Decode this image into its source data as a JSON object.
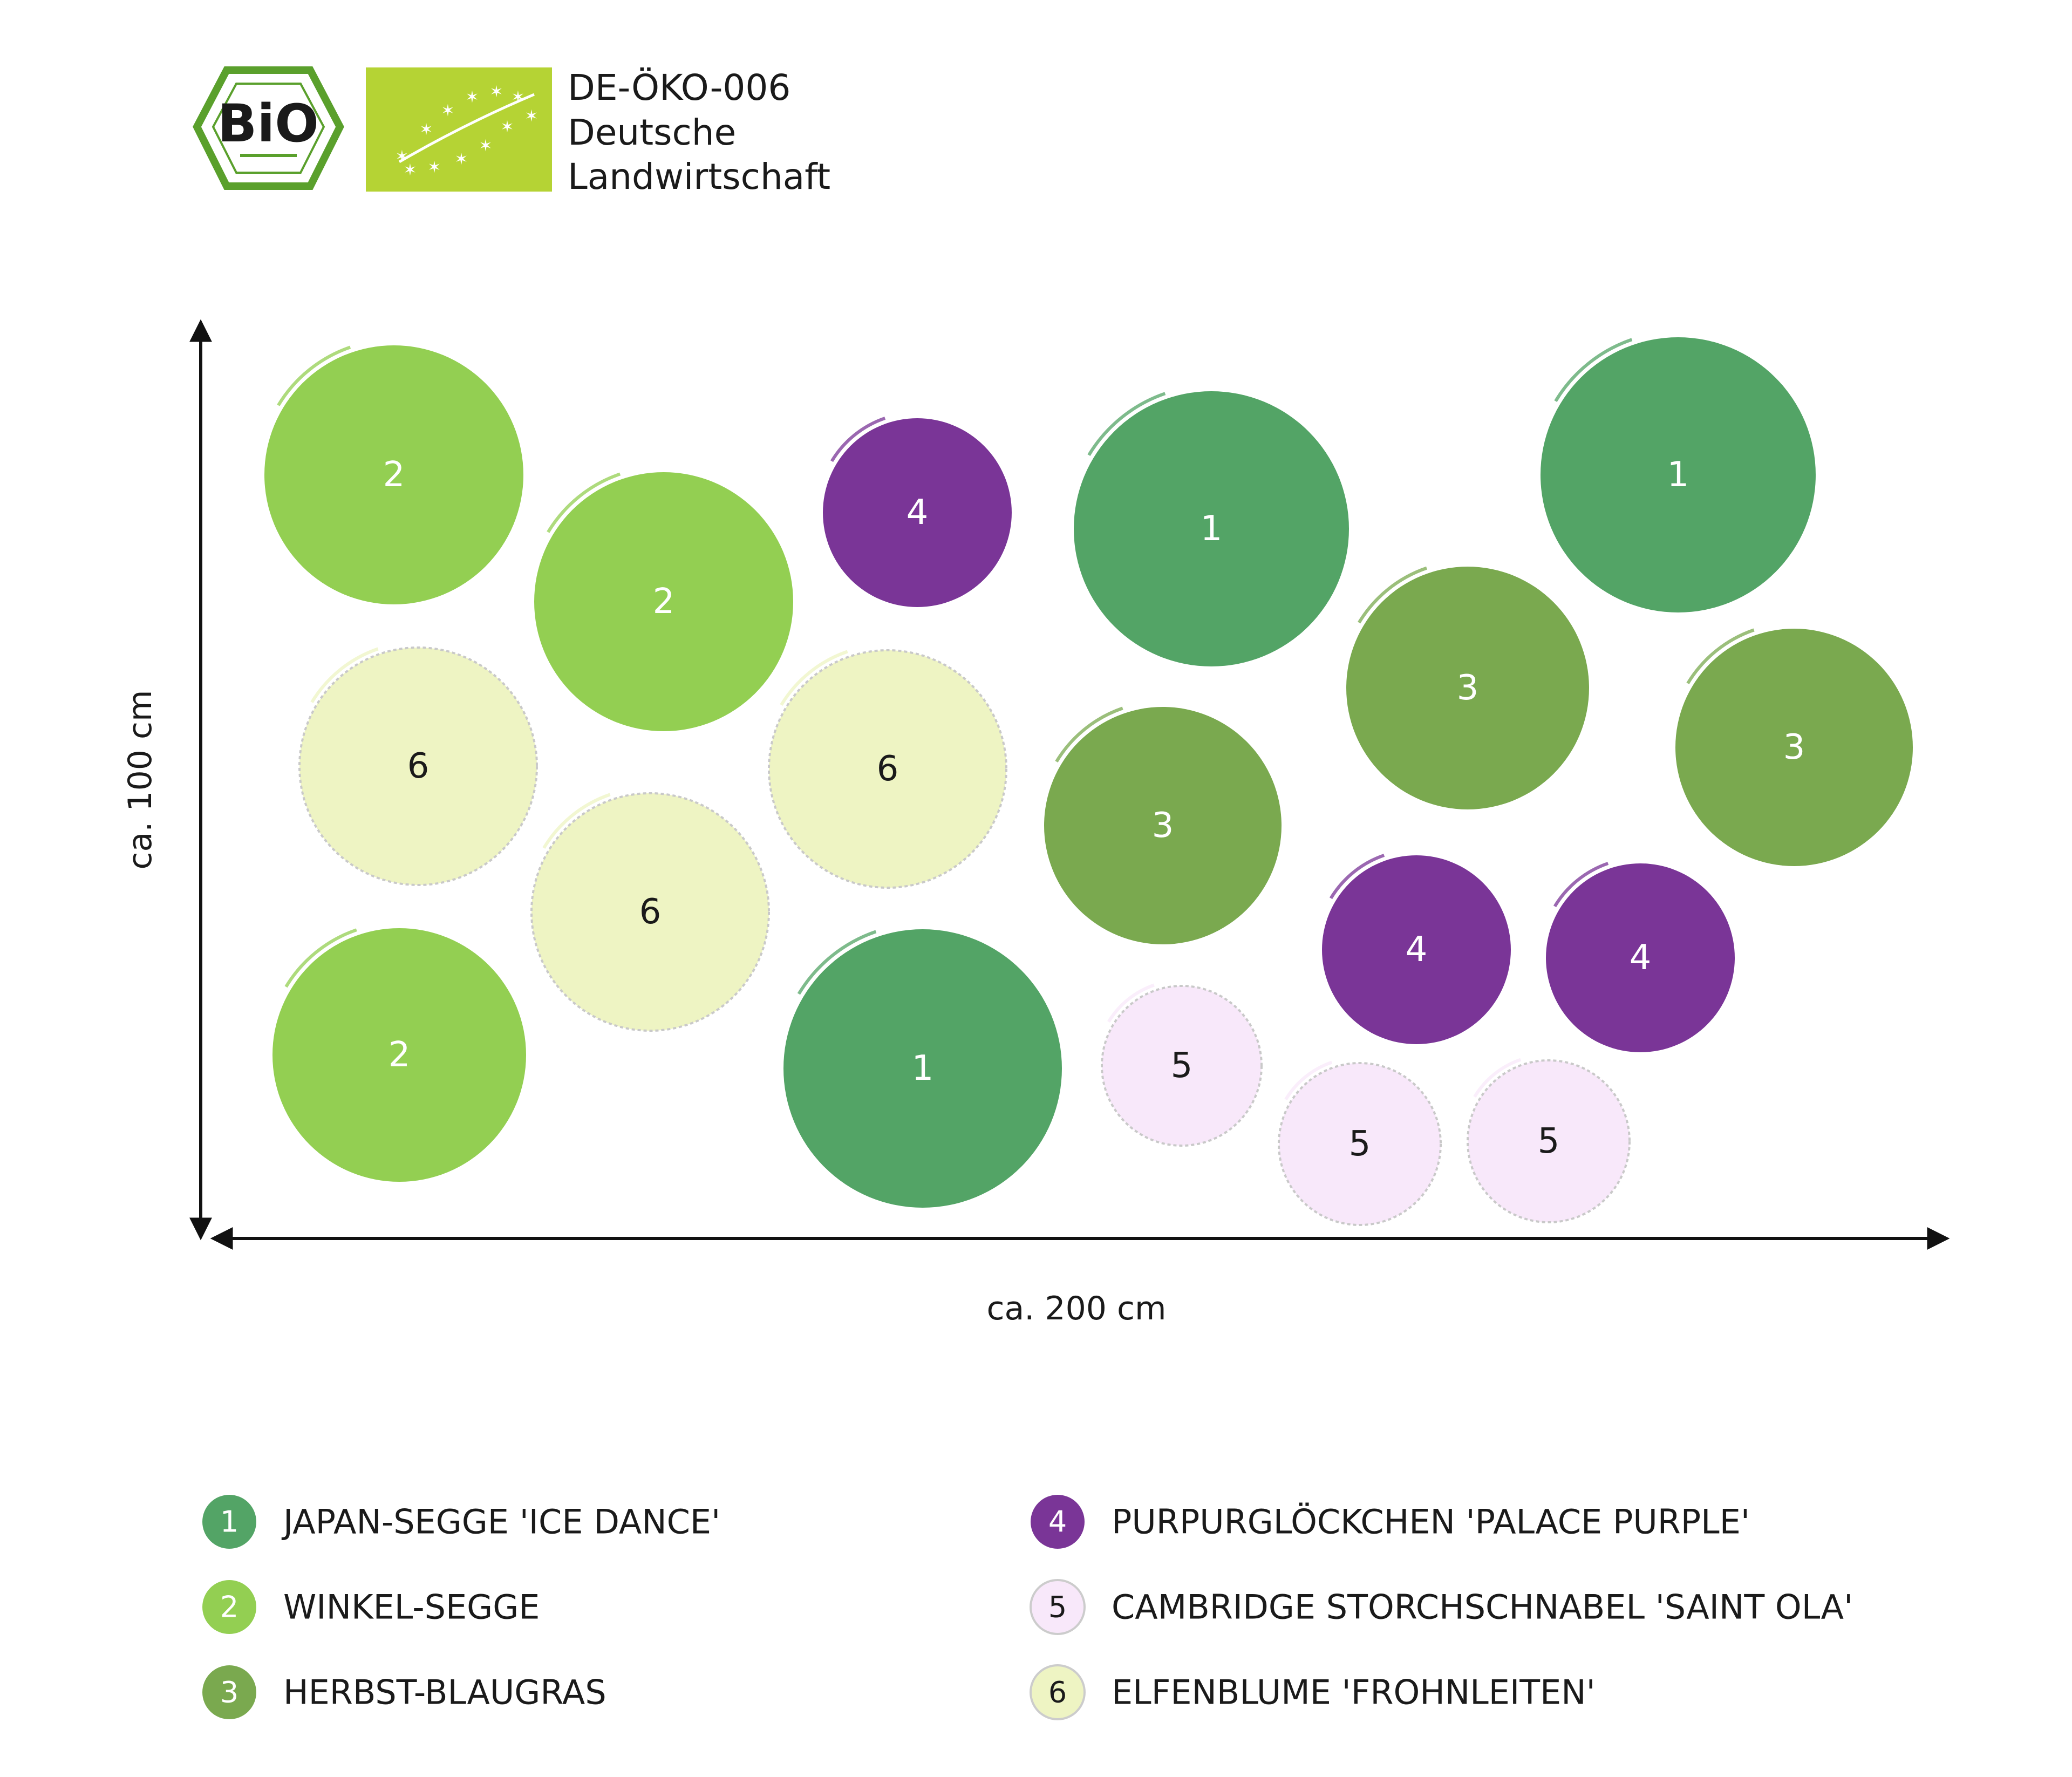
{
  "certification": {
    "code": "DE-ÖKO-006",
    "line2": "Deutsche",
    "line3": "Landwirtschaft",
    "bio_logo_text": "BiO",
    "bio_logo_icon": "bio-hexagon-logo",
    "eu_logo_icon": "eu-organic-leaf-logo",
    "eu_logo_color": "#b5d334"
  },
  "dimensions": {
    "width_label": "ca. 200 cm",
    "height_label": "ca. 100 cm"
  },
  "species": [
    {
      "id": "1",
      "name": "JAPAN-SEGGE 'ICE DANCE'",
      "color": "#53a466",
      "num_color": "#ffffff"
    },
    {
      "id": "2",
      "name": "WINKEL-SEGGE",
      "color": "#93cf52",
      "num_color": "#ffffff"
    },
    {
      "id": "3",
      "name": "HERBST-BLAUGRAS",
      "color": "#7aa94f",
      "num_color": "#ffffff"
    },
    {
      "id": "4",
      "name": "PURPURGLÖCKCHEN 'PALACE PURPLE'",
      "color": "#7a3597",
      "num_color": "#ffffff"
    },
    {
      "id": "5",
      "name": "CAMBRIDGE STORCHSCHNABEL 'SAINT OLA'",
      "color": "#f8e8fa",
      "num_color": "#1a1a1a"
    },
    {
      "id": "6",
      "name": "ELFENBLUME 'FROHNLEITEN'",
      "color": "#eef4c3",
      "num_color": "#1a1a1a"
    }
  ],
  "plants": [
    {
      "label": "2"
    },
    {
      "label": "2"
    },
    {
      "label": "4"
    },
    {
      "label": "1"
    },
    {
      "label": "1"
    },
    {
      "label": "6"
    },
    {
      "label": "6"
    },
    {
      "label": "3"
    },
    {
      "label": "3"
    },
    {
      "label": "3"
    },
    {
      "label": "6"
    },
    {
      "label": "4"
    },
    {
      "label": "4"
    },
    {
      "label": "2"
    },
    {
      "label": "1"
    },
    {
      "label": "5"
    },
    {
      "label": "5"
    },
    {
      "label": "5"
    }
  ]
}
